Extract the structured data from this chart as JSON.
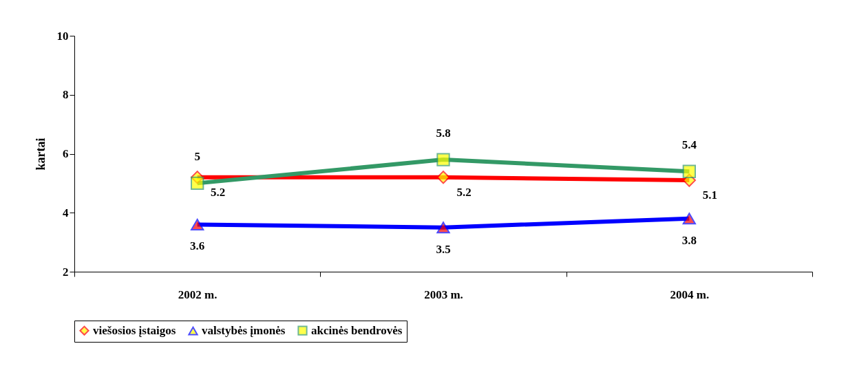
{
  "chart_data": {
    "type": "line",
    "ylabel": "kartai",
    "categories": [
      "2002 m.",
      "2003 m.",
      "2004 m."
    ],
    "series": [
      {
        "name": "viešosios įstaigos",
        "color": "#ff0000",
        "marker": "diamond",
        "values": [
          5.2,
          5.2,
          5.1
        ]
      },
      {
        "name": "valstybės įmonės",
        "color": "#0000ff",
        "marker": "triangle",
        "values": [
          3.6,
          3.5,
          3.8
        ]
      },
      {
        "name": "akcinės bendrovės",
        "color": "#339966",
        "marker": "square",
        "values": [
          5.0,
          5.8,
          5.4
        ]
      }
    ],
    "ylim": [
      2,
      10
    ],
    "yticks": [
      2,
      4,
      6,
      8,
      10
    ],
    "grid": false,
    "legend": "bottom",
    "data_labels": true,
    "line_style": "solid"
  }
}
